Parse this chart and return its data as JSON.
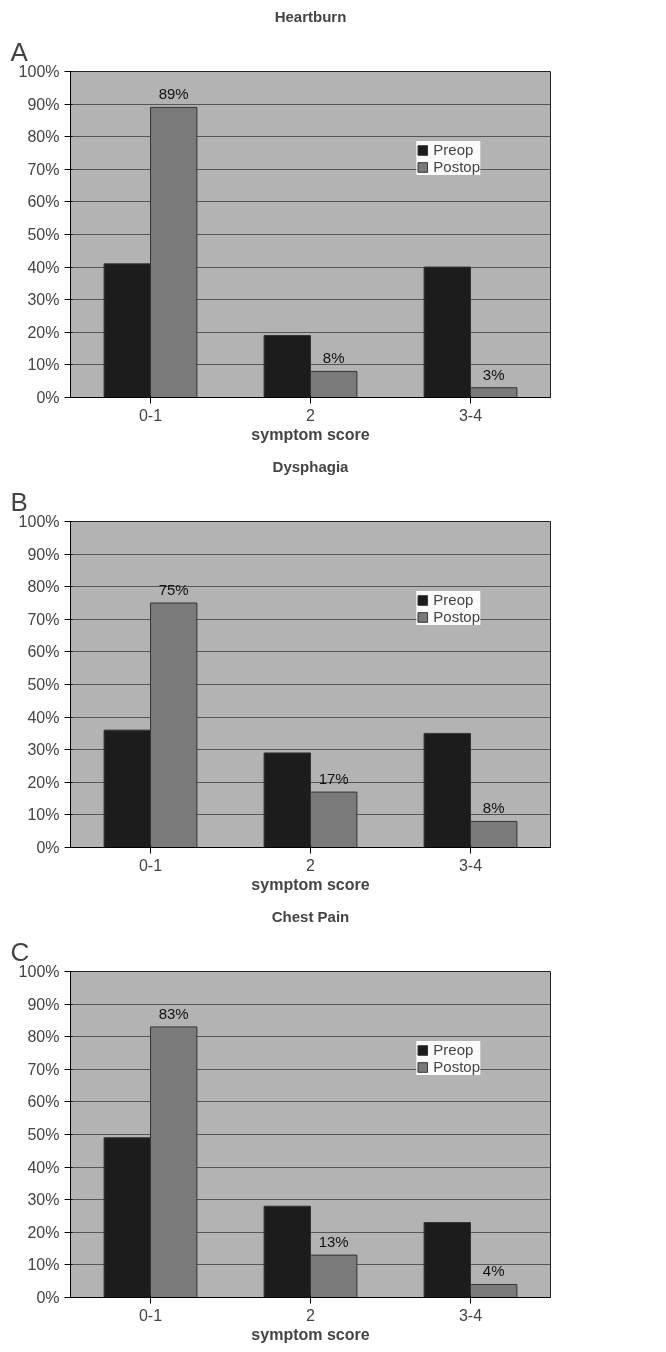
{
  "chart_data": [
    {
      "type": "bar",
      "title": "Heartburn",
      "xlabel": "symptom score",
      "annotations": [
        "A"
      ],
      "categories": [
        "0-1",
        "2",
        "3-4"
      ],
      "ylim": [
        0,
        100
      ],
      "yticks": [
        {
          "value": 0,
          "label": "0%"
        },
        {
          "value": 10,
          "label": "10%"
        },
        {
          "value": 20,
          "label": "20%"
        },
        {
          "value": 30,
          "label": "30%"
        },
        {
          "value": 40,
          "label": "40%"
        },
        {
          "value": 50,
          "label": "50%"
        },
        {
          "value": 60,
          "label": "60%"
        },
        {
          "value": 70,
          "label": "70%"
        },
        {
          "value": 80,
          "label": "80%"
        },
        {
          "value": 90,
          "label": "90%"
        },
        {
          "value": 100,
          "label": "100%"
        }
      ],
      "grid": "y",
      "legend": "top right",
      "series": [
        {
          "name": "Preop",
          "color": "#1c1c1c",
          "values": [
            41,
            19,
            40
          ]
        },
        {
          "name": "Postop",
          "color": "#7a7a7a",
          "values": [
            89,
            8,
            3
          ],
          "value_labels": [
            "89%",
            "8%",
            "3%"
          ]
        }
      ]
    },
    {
      "type": "bar",
      "title": "Dysphagia",
      "xlabel": "symptom score",
      "annotations": [
        "B"
      ],
      "categories": [
        "0-1",
        "2",
        "3-4"
      ],
      "ylim": [
        0,
        100
      ],
      "yticks": [
        {
          "value": 0,
          "label": "0%"
        },
        {
          "value": 10,
          "label": "10%"
        },
        {
          "value": 20,
          "label": "20%"
        },
        {
          "value": 30,
          "label": "30%"
        },
        {
          "value": 40,
          "label": "40%"
        },
        {
          "value": 50,
          "label": "50%"
        },
        {
          "value": 60,
          "label": "60%"
        },
        {
          "value": 70,
          "label": "70%"
        },
        {
          "value": 80,
          "label": "80%"
        },
        {
          "value": 90,
          "label": "90%"
        },
        {
          "value": 100,
          "label": "100%"
        }
      ],
      "grid": "y",
      "legend": "top right",
      "series": [
        {
          "name": "Preop",
          "color": "#1c1c1c",
          "values": [
            36,
            29,
            35
          ]
        },
        {
          "name": "Postop",
          "color": "#7a7a7a",
          "values": [
            75,
            17,
            8
          ],
          "value_labels": [
            "75%",
            "17%",
            "8%"
          ]
        }
      ]
    },
    {
      "type": "bar",
      "title": "Chest Pain",
      "xlabel": "symptom score",
      "annotations": [
        "C"
      ],
      "categories": [
        "0-1",
        "2",
        "3-4"
      ],
      "ylim": [
        0,
        100
      ],
      "yticks": [
        {
          "value": 0,
          "label": "0%"
        },
        {
          "value": 10,
          "label": "10%"
        },
        {
          "value": 20,
          "label": "20%"
        },
        {
          "value": 30,
          "label": "30%"
        },
        {
          "value": 40,
          "label": "40%"
        },
        {
          "value": 50,
          "label": "50%"
        },
        {
          "value": 60,
          "label": "60%"
        },
        {
          "value": 70,
          "label": "70%"
        },
        {
          "value": 80,
          "label": "80%"
        },
        {
          "value": 90,
          "label": "90%"
        },
        {
          "value": 100,
          "label": "100%"
        }
      ],
      "grid": "y",
      "legend": "top right",
      "series": [
        {
          "name": "Preop",
          "color": "#1c1c1c",
          "values": [
            49,
            28,
            23
          ]
        },
        {
          "name": "Postop",
          "color": "#7a7a7a",
          "values": [
            83,
            13,
            4
          ],
          "value_labels": [
            "83%",
            "13%",
            "4%"
          ]
        }
      ]
    }
  ]
}
